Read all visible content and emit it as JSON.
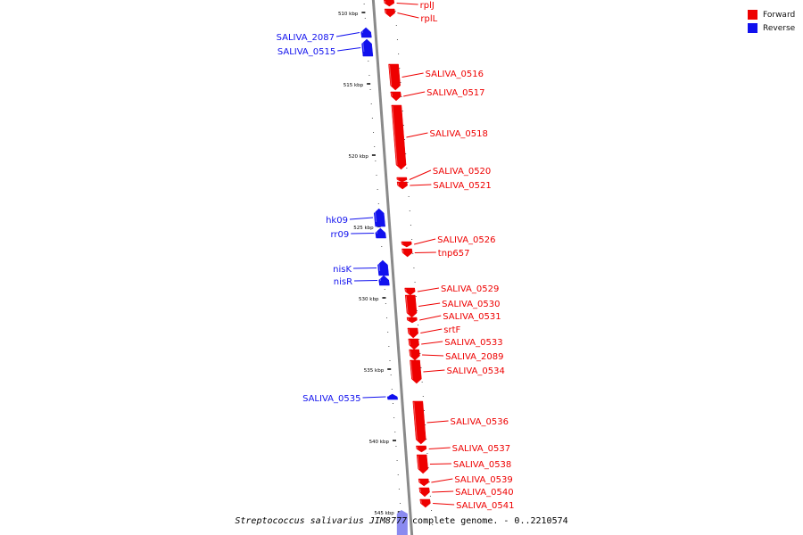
{
  "caption": {
    "organism": "Streptococcus salivarius JIM8777",
    "rest": " complete genome. - 0..2210574"
  },
  "legend": [
    {
      "label": "Forward",
      "color": "#ee0000"
    },
    {
      "label": "Reverse",
      "color": "#1111ee"
    }
  ],
  "ticks": [
    "510 kbp",
    "515 kbp",
    "520 kbp",
    "525 kbp",
    "530 kbp",
    "535 kbp",
    "540 kbp",
    "545 kbp"
  ],
  "genes": [
    {
      "name": "rplJ",
      "strand": "forward"
    },
    {
      "name": "rplL",
      "strand": "forward"
    },
    {
      "name": "SALIVA_2087",
      "strand": "reverse"
    },
    {
      "name": "SALIVA_0515",
      "strand": "reverse"
    },
    {
      "name": "SALIVA_0516",
      "strand": "forward"
    },
    {
      "name": "SALIVA_0517",
      "strand": "forward"
    },
    {
      "name": "SALIVA_0518",
      "strand": "forward"
    },
    {
      "name": "SALIVA_0520",
      "strand": "forward"
    },
    {
      "name": "SALIVA_0521",
      "strand": "forward"
    },
    {
      "name": "hk09",
      "strand": "reverse"
    },
    {
      "name": "rr09",
      "strand": "reverse"
    },
    {
      "name": "SALIVA_0526",
      "strand": "forward"
    },
    {
      "name": "tnp657",
      "strand": "forward"
    },
    {
      "name": "nisK",
      "strand": "reverse"
    },
    {
      "name": "nisR",
      "strand": "reverse"
    },
    {
      "name": "SALIVA_0529",
      "strand": "forward"
    },
    {
      "name": "SALIVA_0530",
      "strand": "forward"
    },
    {
      "name": "SALIVA_0531",
      "strand": "forward"
    },
    {
      "name": "srtF",
      "strand": "forward"
    },
    {
      "name": "SALIVA_0533",
      "strand": "forward"
    },
    {
      "name": "SALIVA_2089",
      "strand": "forward"
    },
    {
      "name": "SALIVA_0534",
      "strand": "forward"
    },
    {
      "name": "SALIVA_0535",
      "strand": "reverse"
    },
    {
      "name": "SALIVA_0536",
      "strand": "forward"
    },
    {
      "name": "SALIVA_0537",
      "strand": "forward"
    },
    {
      "name": "SALIVA_0538",
      "strand": "forward"
    },
    {
      "name": "SALIVA_0539",
      "strand": "forward"
    },
    {
      "name": "SALIVA_0540",
      "strand": "forward"
    },
    {
      "name": "SALIVA_0541",
      "strand": "forward"
    }
  ]
}
